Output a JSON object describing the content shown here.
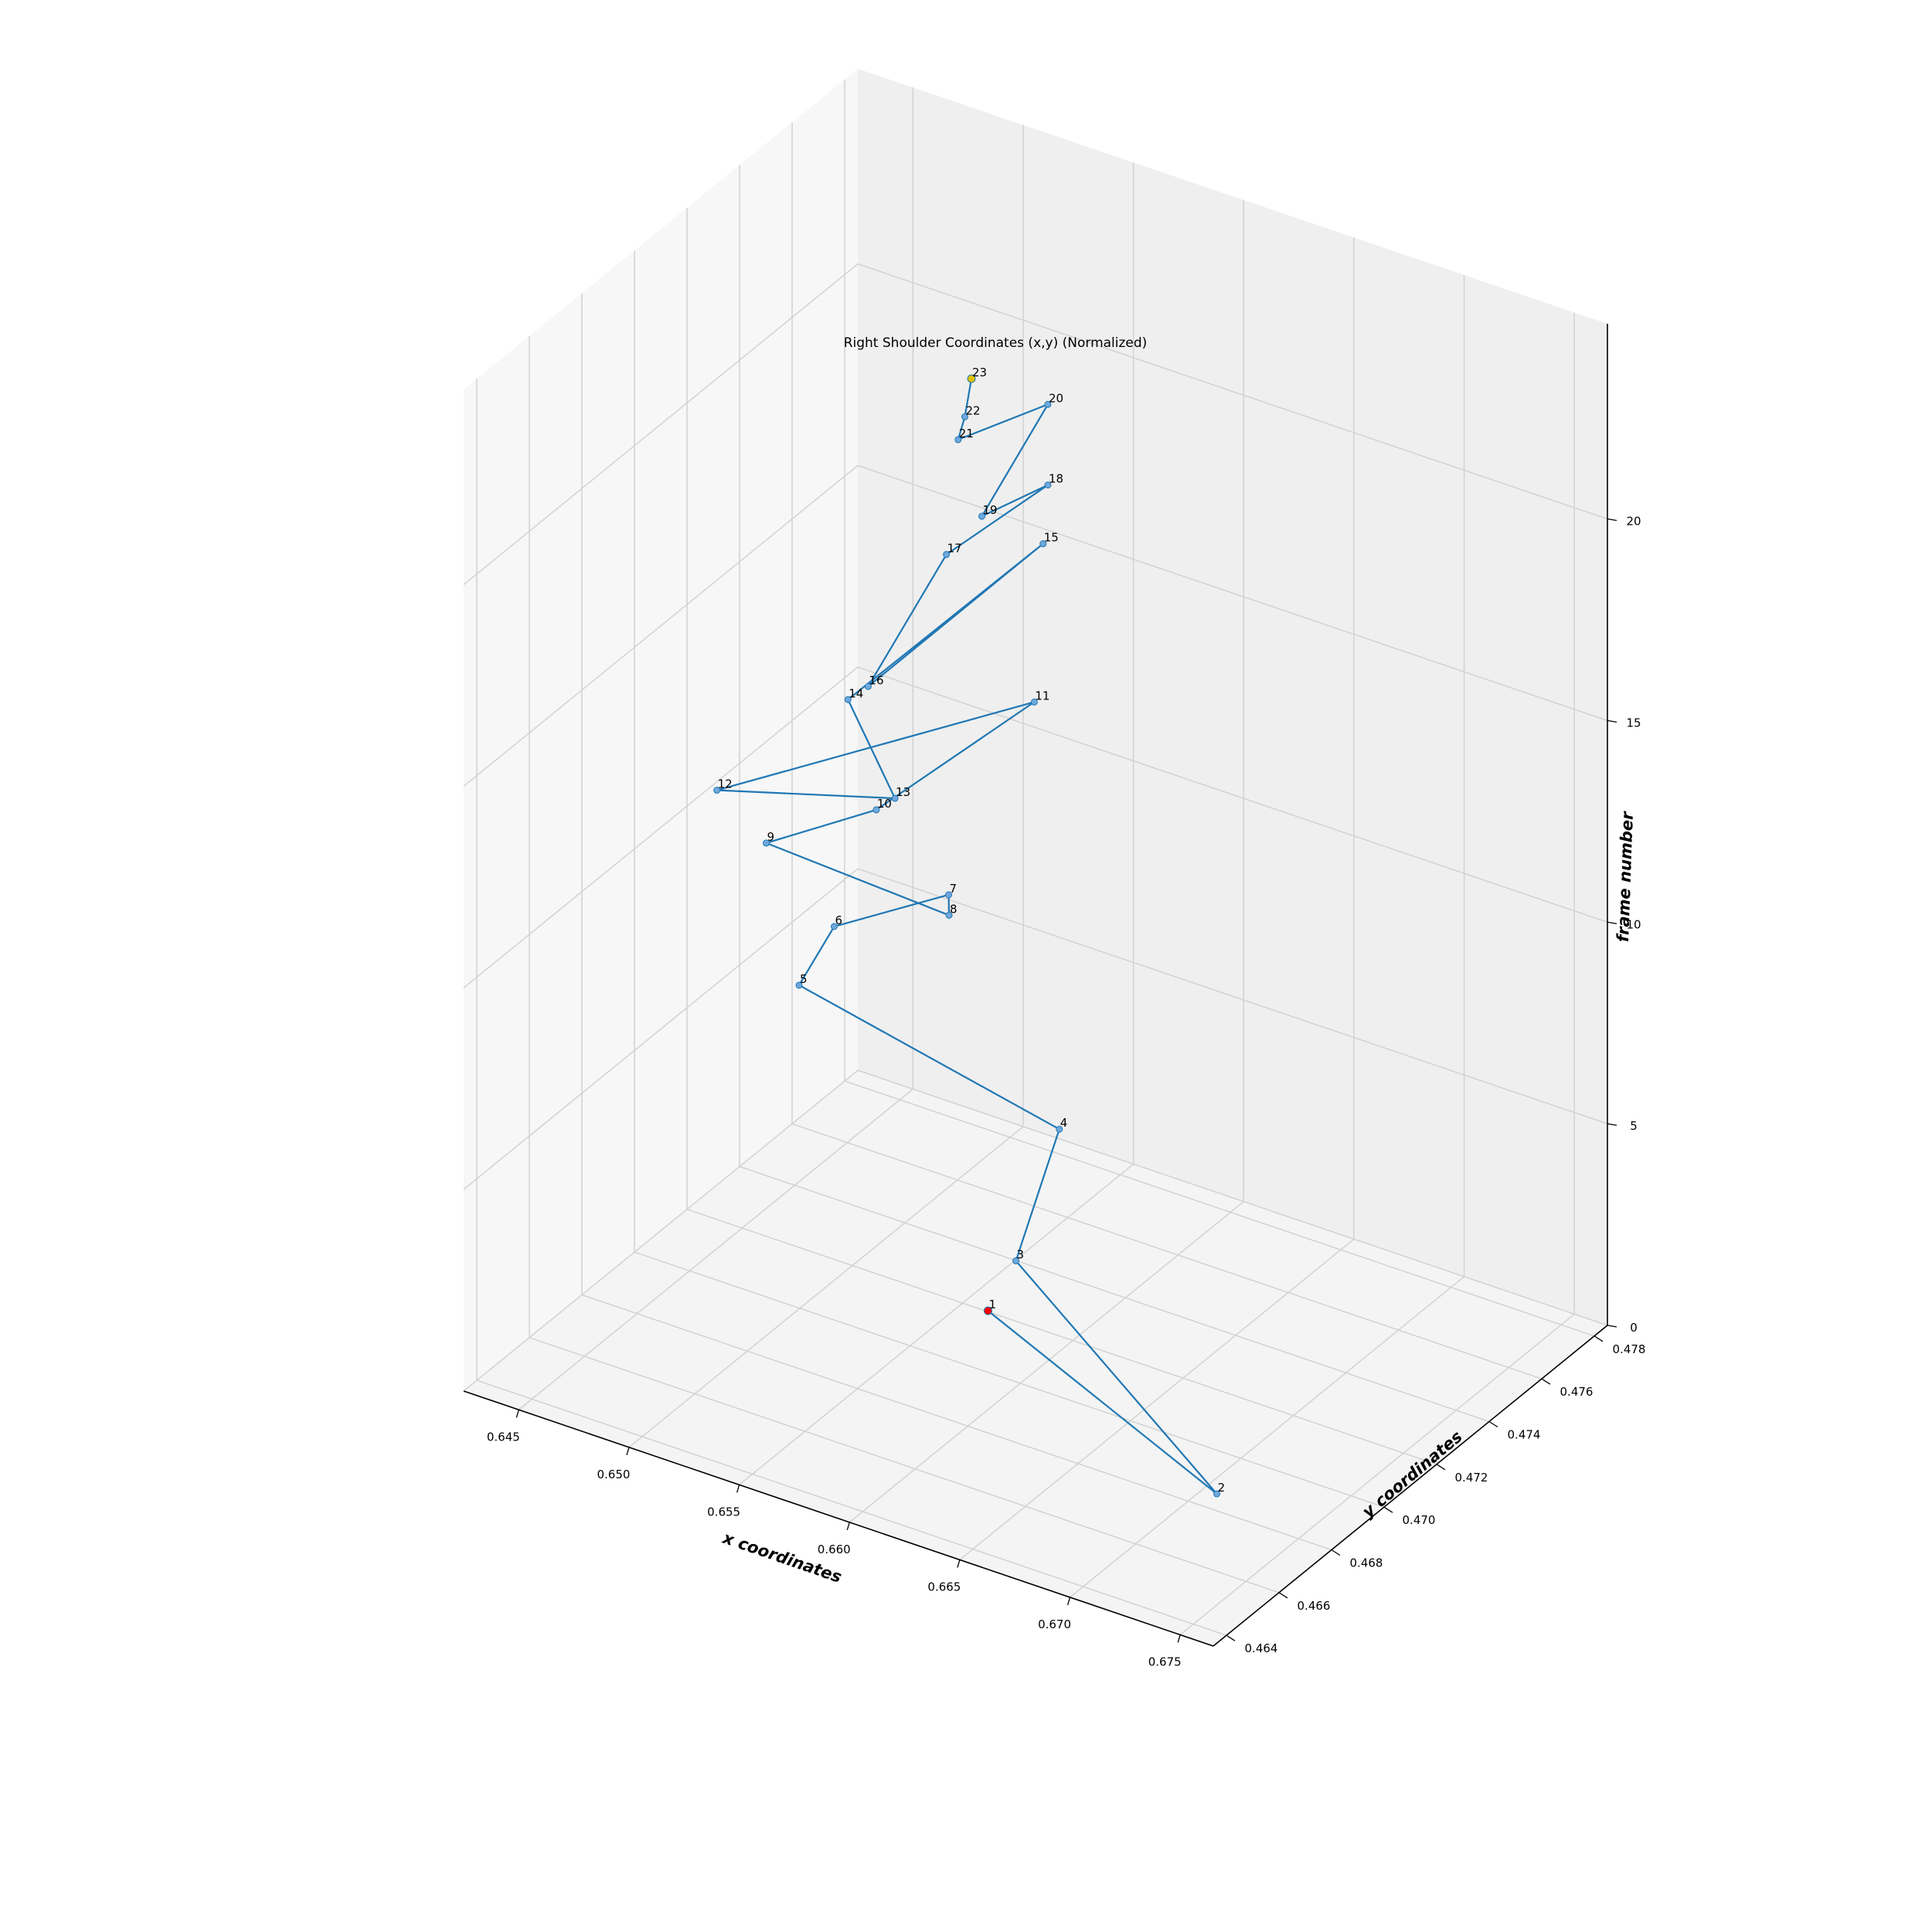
{
  "chart_data": {
    "type": "line",
    "projection": "3d",
    "title": "Right Shoulder Coordinates (x,y) (Normalized)",
    "xlabel": "x coordinates",
    "ylabel": "y coordinates",
    "zlabel": "frame number",
    "xticks": [
      "0.645",
      "0.650",
      "0.655",
      "0.660",
      "0.665",
      "0.670",
      "0.675"
    ],
    "yticks": [
      "0.464",
      "0.466",
      "0.468",
      "0.470",
      "0.472",
      "0.474",
      "0.476",
      "0.478"
    ],
    "zticks": [
      "0",
      "5",
      "10",
      "15",
      "20"
    ],
    "xlim": [
      0.6425,
      0.6765
    ],
    "ylim": [
      0.4635,
      0.4785
    ],
    "zlim": [
      0,
      23
    ],
    "grid": true,
    "line_color": "#1f77b4",
    "point_color": "#6fa8dc",
    "start_point_color": "#ff0000",
    "end_point_color": "#e0c000",
    "points": [
      {
        "label": "1",
        "x": 0.6577,
        "y": 0.4707,
        "z": 1
      },
      {
        "label": "2",
        "x": 0.6738,
        "y": 0.4659,
        "z": 2
      },
      {
        "label": "3",
        "x": 0.6598,
        "y": 0.47,
        "z": 3
      },
      {
        "label": "4",
        "x": 0.6576,
        "y": 0.4735,
        "z": 4
      },
      {
        "label": "5",
        "x": 0.6452,
        "y": 0.474,
        "z": 5
      },
      {
        "label": "6",
        "x": 0.6456,
        "y": 0.475,
        "z": 6
      },
      {
        "label": "7",
        "x": 0.6496,
        "y": 0.476,
        "z": 7
      },
      {
        "label": "8",
        "x": 0.652,
        "y": 0.474,
        "z": 8
      },
      {
        "label": "9",
        "x": 0.6449,
        "y": 0.473,
        "z": 9
      },
      {
        "label": "10",
        "x": 0.6487,
        "y": 0.474,
        "z": 10
      },
      {
        "label": "11",
        "x": 0.6511,
        "y": 0.478,
        "z": 11
      },
      {
        "label": "12",
        "x": 0.646,
        "y": 0.4702,
        "z": 12
      },
      {
        "label": "13",
        "x": 0.6536,
        "y": 0.4706,
        "z": 13
      },
      {
        "label": "14",
        "x": 0.6498,
        "y": 0.472,
        "z": 14
      },
      {
        "label": "15",
        "x": 0.6515,
        "y": 0.478,
        "z": 15
      },
      {
        "label": "16",
        "x": 0.6531,
        "y": 0.47,
        "z": 16
      },
      {
        "label": "17",
        "x": 0.652,
        "y": 0.4739,
        "z": 17
      },
      {
        "label": "18",
        "x": 0.6541,
        "y": 0.476,
        "z": 18
      },
      {
        "label": "19",
        "x": 0.6548,
        "y": 0.4729,
        "z": 19
      },
      {
        "label": "20",
        "x": 0.6541,
        "y": 0.476,
        "z": 20
      },
      {
        "label": "21",
        "x": 0.6542,
        "y": 0.4725,
        "z": 21
      },
      {
        "label": "22",
        "x": 0.6551,
        "y": 0.472,
        "z": 22
      },
      {
        "label": "23",
        "x": 0.6554,
        "y": 0.472,
        "z": 23
      }
    ]
  }
}
